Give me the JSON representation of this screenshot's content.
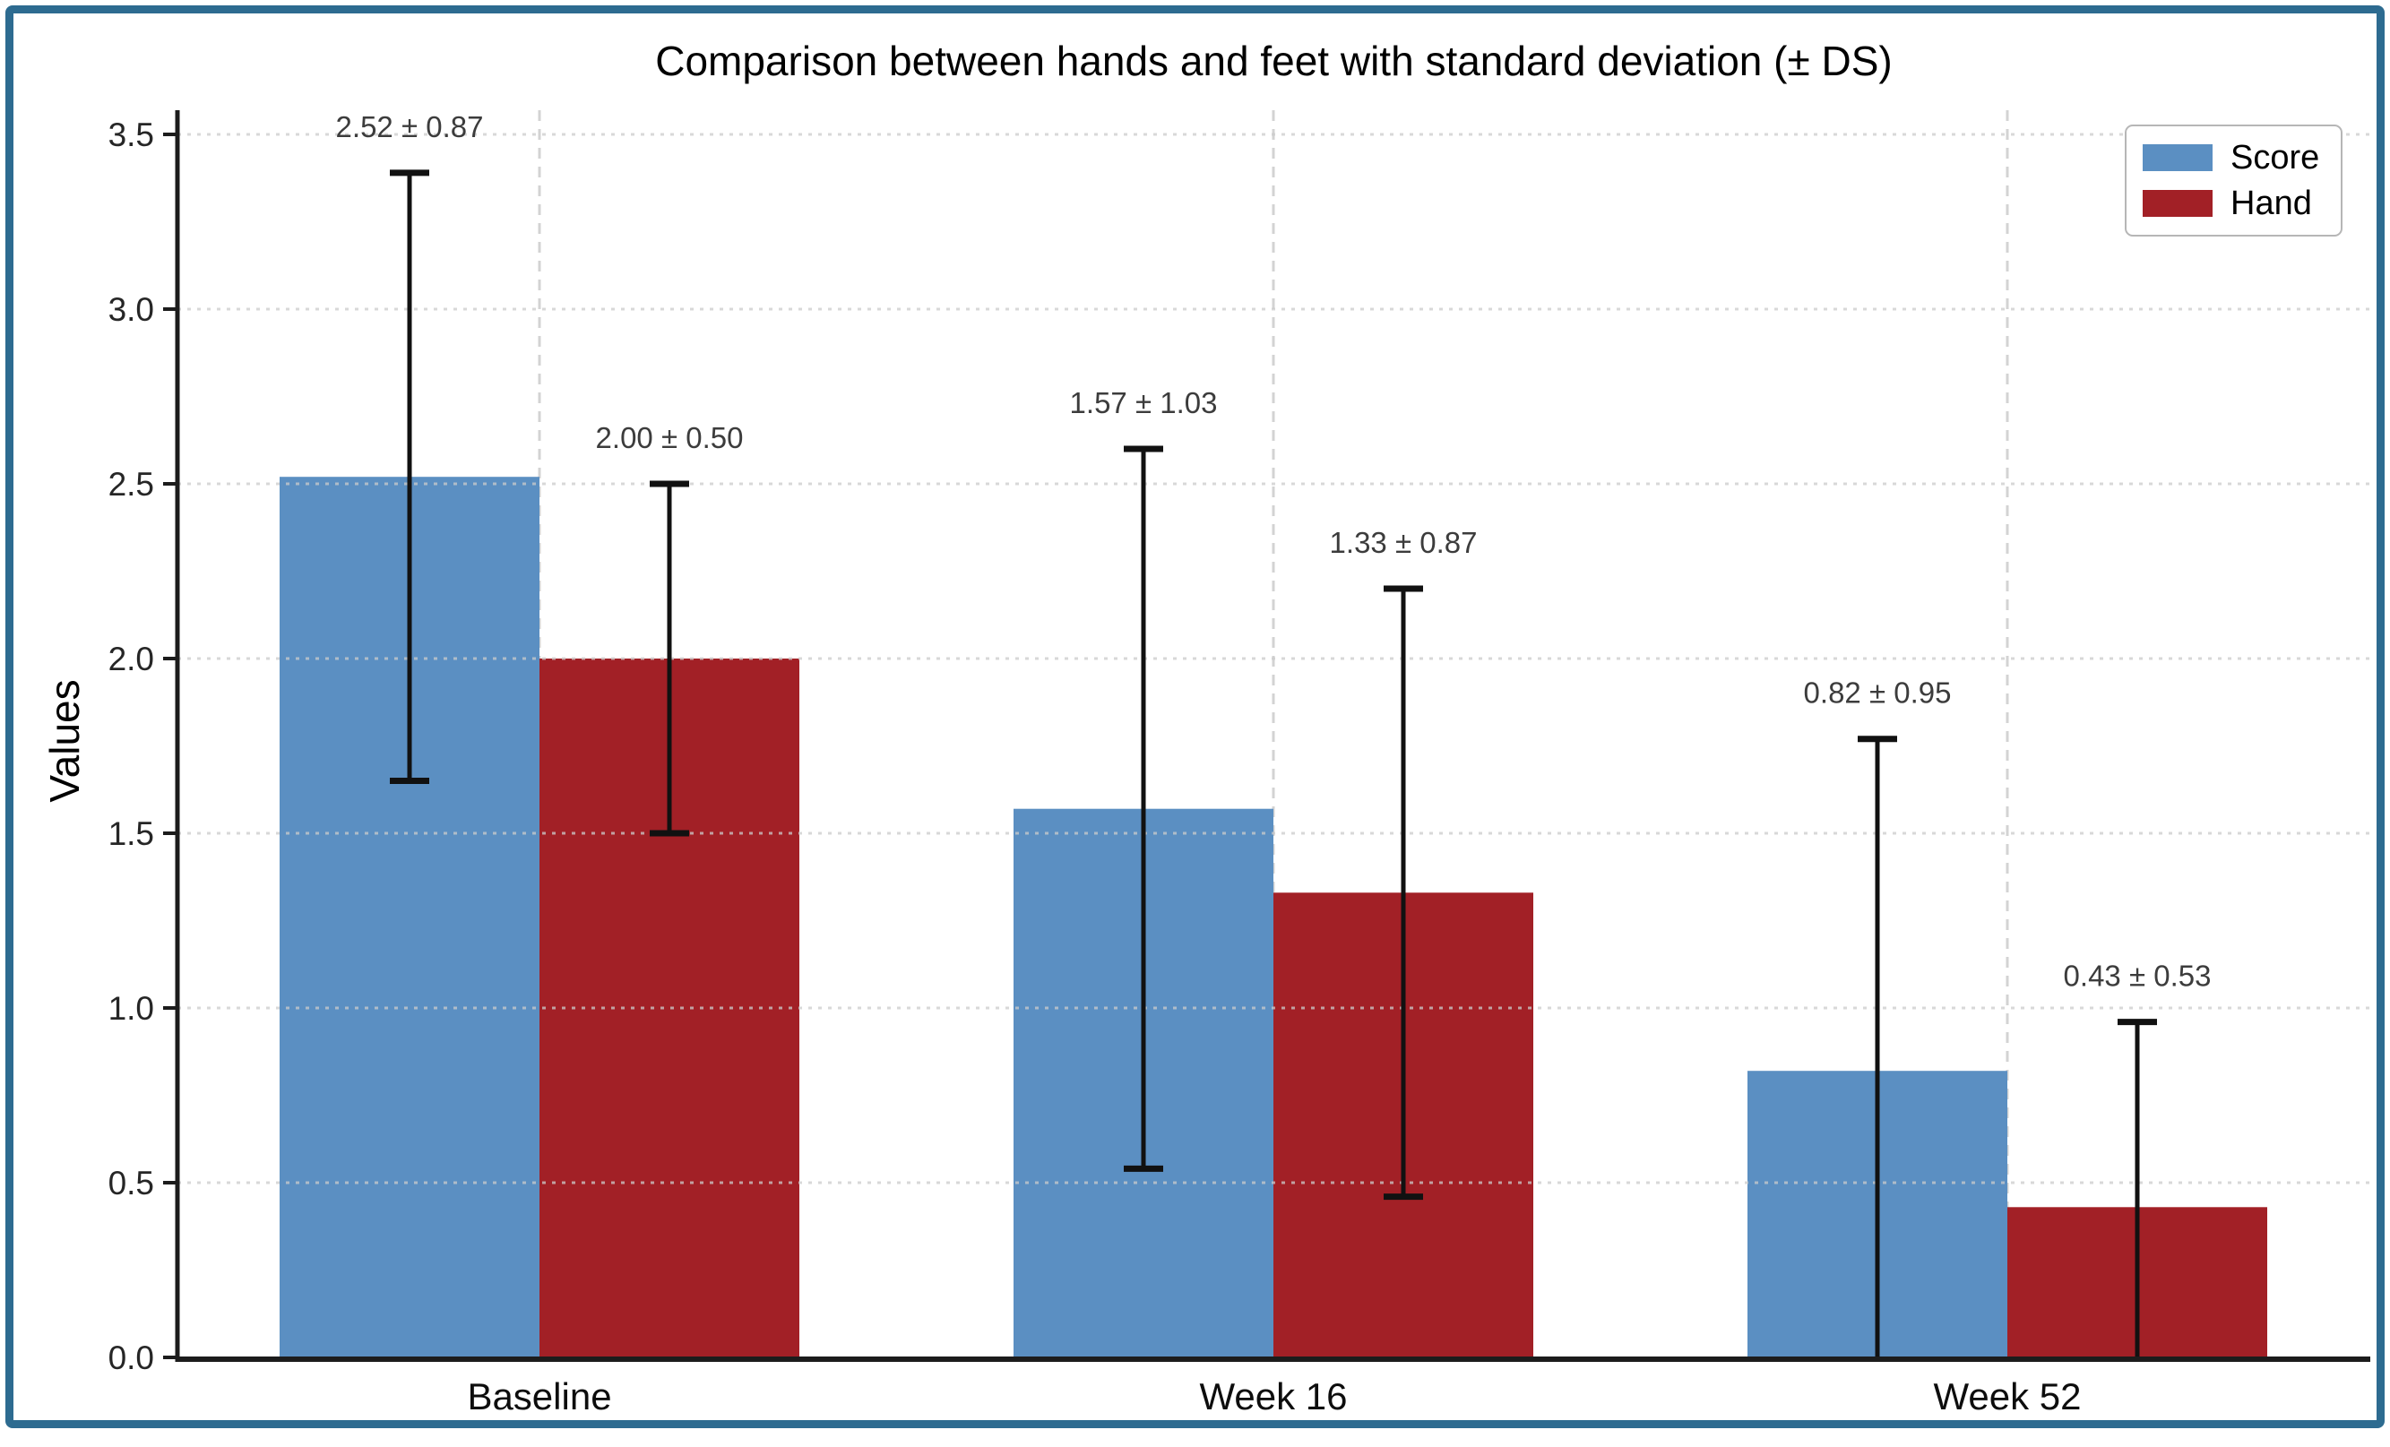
{
  "frame": {
    "border_color": "#2d6b90"
  },
  "chart_data": {
    "type": "bar",
    "title": "Comparison between hands and feet with standard deviation (± DS)",
    "xlabel": "",
    "ylabel": "Values",
    "categories": [
      "Baseline",
      "Week 16",
      "Week 52"
    ],
    "series": [
      {
        "name": "Score",
        "color": "#5b8fc2",
        "values": [
          2.52,
          1.57,
          0.82
        ],
        "errors": [
          0.87,
          1.03,
          0.95
        ],
        "labels": [
          "2.52 ± 0.87",
          "1.57 ± 1.03",
          "0.82 ± 0.95"
        ]
      },
      {
        "name": "Hand",
        "color": "#a22026",
        "values": [
          2.0,
          1.33,
          0.43
        ],
        "errors": [
          0.5,
          0.87,
          0.53
        ],
        "labels": [
          "2.00 ± 0.50",
          "1.33 ± 0.87",
          "0.43 ± 0.53"
        ]
      }
    ],
    "ylim": [
      0,
      3.5
    ],
    "ytick_step": 0.5,
    "ytick_labels": [
      "0.0",
      "0.5",
      "1.0",
      "1.5",
      "2.0",
      "2.5",
      "3.0",
      "3.5"
    ],
    "grid": true,
    "error_bar_color": "#111111",
    "annotation_color": "#3c3c3c",
    "axis_color": "#1c1c1c",
    "grid_color": "#cccccc",
    "legend_position": "top-right"
  }
}
